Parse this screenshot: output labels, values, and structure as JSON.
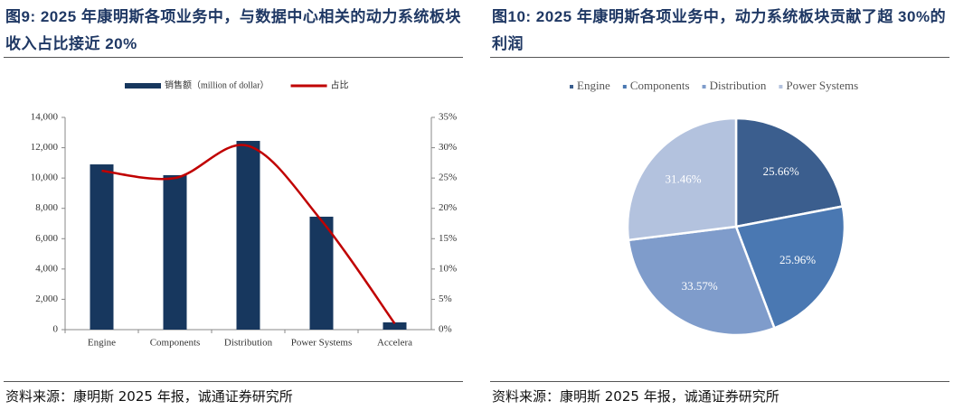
{
  "chart_data": [
    {
      "type": "bar",
      "title": "图9:   2025 年康明斯各项业务中，与数据中心相关的动力系统板块收入占比接近 20%",
      "source": "资料来源：康明斯 2025 年报，诚通证券研究所",
      "categories": [
        "Engine",
        "Components",
        "Distribution",
        "Power Systems",
        "Accelera"
      ],
      "series": [
        {
          "name": "销售额（million of dollar）",
          "color": "#17375e",
          "type": "bar",
          "values": [
            10900,
            10190,
            12450,
            7450,
            480
          ]
        },
        {
          "name": "占比",
          "color": "#c00000",
          "type": "line",
          "axis": "y2",
          "values": [
            26.2,
            25.0,
            30.3,
            18.0,
            1.0
          ]
        }
      ],
      "ylim": [
        0,
        14000
      ],
      "yticks": [
        0,
        {
          "value": 2000,
          "label": "2,000"
        },
        {
          "value": 4000,
          "label": "4,000"
        },
        {
          "value": 6000,
          "label": "6,000"
        },
        {
          "value": 8000,
          "label": "8,000"
        },
        {
          "value": 10000,
          "label": "10,000"
        },
        {
          "value": 12000,
          "label": "12,000"
        },
        {
          "value": 14000,
          "label": "14,000"
        }
      ],
      "y2lim": [
        0,
        35
      ],
      "y2ticks": [
        {
          "value": 0,
          "label": "0%"
        },
        {
          "value": 5,
          "label": "5%"
        },
        {
          "value": 10,
          "label": "10%"
        },
        {
          "value": 15,
          "label": "15%"
        },
        {
          "value": 20,
          "label": "20%"
        },
        {
          "value": 25,
          "label": "25%"
        },
        {
          "value": 30,
          "label": "30%"
        },
        {
          "value": 35,
          "label": "35%"
        }
      ],
      "legend": "top"
    },
    {
      "type": "pie",
      "title": "图10:   2025 年康明斯各项业务中，动力系统板块贡献了超 30%的利润",
      "source": "资料来源：康明斯 2025 年报，诚通证券研究所",
      "categories": [
        "Engine",
        "Components",
        "Distribution",
        "Power Systems"
      ],
      "values": [
        25.66,
        25.96,
        33.57,
        31.46
      ],
      "value_labels": [
        "25.66%",
        "25.96%",
        "33.57%",
        "31.46%"
      ],
      "colors": [
        "#3b5e8e",
        "#4a78b2",
        "#7f9ccb",
        "#b3c2de"
      ],
      "legend": "top"
    }
  ]
}
